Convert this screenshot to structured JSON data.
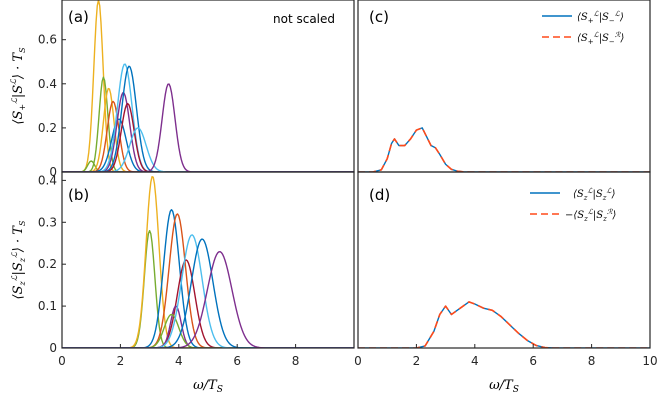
{
  "chart_data": [
    {
      "panel": "(a)",
      "type": "line",
      "annotation": "not scaled",
      "ylabel": "⟨S₊ᴸ|S₋ᴸ⟩ · T_S",
      "xlim": [
        0,
        10
      ],
      "ylim": [
        0,
        0.78
      ],
      "yticks": [
        0,
        0.2,
        0.4,
        0.6
      ],
      "yticklabels": [
        "0",
        "0.2",
        "0.4",
        "0.6"
      ],
      "series": [
        {
          "color": "#EDB120",
          "mu": 1.25,
          "sigma": 0.16,
          "amp": 0.78
        },
        {
          "color": "#77AC30",
          "mu": 1.42,
          "sigma": 0.15,
          "amp": 0.43
        },
        {
          "color": "#77AC30",
          "mu": 1.0,
          "sigma": 0.12,
          "amp": 0.05
        },
        {
          "color": "#EDB120",
          "mu": 1.6,
          "sigma": 0.18,
          "amp": 0.38
        },
        {
          "color": "#D95319",
          "mu": 1.75,
          "sigma": 0.2,
          "amp": 0.32
        },
        {
          "color": "#0072BD",
          "mu": 1.95,
          "sigma": 0.25,
          "amp": 0.24
        },
        {
          "color": "#7E2F8E",
          "mu": 2.1,
          "sigma": 0.22,
          "amp": 0.36
        },
        {
          "color": "#4DBEEE",
          "mu": 2.15,
          "sigma": 0.25,
          "amp": 0.49
        },
        {
          "color": "#0072BD",
          "mu": 2.3,
          "sigma": 0.25,
          "amp": 0.48
        },
        {
          "color": "#A2142F",
          "mu": 2.25,
          "sigma": 0.22,
          "amp": 0.31
        },
        {
          "color": "#4DBEEE",
          "mu": 2.6,
          "sigma": 0.28,
          "amp": 0.2
        },
        {
          "color": "#7E2F8E",
          "mu": 3.65,
          "sigma": 0.22,
          "amp": 0.4
        }
      ]
    },
    {
      "panel": "(b)",
      "type": "line",
      "ylabel": "⟨S_zᴸ|S_zᴸ⟩ · T_S",
      "xlabel": "ω/T_S",
      "xlim": [
        0,
        10
      ],
      "ylim": [
        0,
        0.42
      ],
      "xticks": [
        0,
        2,
        4,
        6,
        8
      ],
      "xticklabels": [
        "0",
        "2",
        "4",
        "6",
        "8"
      ],
      "yticks": [
        0,
        0.1,
        0.2,
        0.3,
        0.4
      ],
      "yticklabels": [
        "0",
        "0.1",
        "0.2",
        "0.3",
        "0.4"
      ],
      "series": [
        {
          "color": "#77AC30",
          "mu": 3.0,
          "sigma": 0.18,
          "amp": 0.28
        },
        {
          "color": "#EDB120",
          "mu": 3.1,
          "sigma": 0.22,
          "amp": 0.41
        },
        {
          "color": "#0072BD",
          "mu": 3.75,
          "sigma": 0.27,
          "amp": 0.33
        },
        {
          "color": "#D95319",
          "mu": 3.95,
          "sigma": 0.28,
          "amp": 0.32
        },
        {
          "color": "#A2142F",
          "mu": 4.25,
          "sigma": 0.3,
          "amp": 0.21
        },
        {
          "color": "#7E2F8E",
          "mu": 3.9,
          "sigma": 0.18,
          "amp": 0.1
        },
        {
          "color": "#77AC30",
          "mu": 3.75,
          "sigma": 0.25,
          "amp": 0.08
        },
        {
          "color": "#4DBEEE",
          "mu": 4.45,
          "sigma": 0.35,
          "amp": 0.27
        },
        {
          "color": "#0072BD",
          "mu": 4.8,
          "sigma": 0.37,
          "amp": 0.26
        },
        {
          "color": "#7E2F8E",
          "mu": 5.4,
          "sigma": 0.42,
          "amp": 0.23
        }
      ]
    },
    {
      "panel": "(c)",
      "type": "line",
      "xlim": [
        0,
        10
      ],
      "ylim": [
        0,
        0.78
      ],
      "legend_position": "top-right",
      "series": [
        {
          "name": "⟨S₊ᴸ|S₋ᴸ⟩",
          "color": "#0072BD",
          "style": "solid",
          "x": [
            0.5,
            0.8,
            1.0,
            1.15,
            1.25,
            1.4,
            1.6,
            1.8,
            2.0,
            2.2,
            2.35,
            2.5,
            2.65,
            2.8,
            3.0,
            3.2,
            3.4,
            3.6,
            3.8,
            4.0
          ],
          "y": [
            0.0,
            0.01,
            0.06,
            0.13,
            0.15,
            0.12,
            0.12,
            0.15,
            0.19,
            0.2,
            0.16,
            0.12,
            0.11,
            0.08,
            0.035,
            0.012,
            0.004,
            0.001,
            0.0,
            0.0
          ]
        },
        {
          "name": "⟨S₊ᴸ|S₋ᴿ⟩",
          "color": "#FF4A1A",
          "style": "dashed",
          "x": [
            0.5,
            0.8,
            1.0,
            1.15,
            1.25,
            1.4,
            1.6,
            1.8,
            2.0,
            2.2,
            2.35,
            2.5,
            2.65,
            2.8,
            3.0,
            3.2,
            3.4,
            3.6,
            3.8,
            4.0
          ],
          "y": [
            0.0,
            0.01,
            0.06,
            0.13,
            0.15,
            0.12,
            0.12,
            0.15,
            0.19,
            0.2,
            0.16,
            0.12,
            0.11,
            0.08,
            0.035,
            0.012,
            0.004,
            0.001,
            0.0,
            0.0
          ]
        }
      ]
    },
    {
      "panel": "(d)",
      "type": "line",
      "xlabel": "ω/T_S",
      "xlim": [
        0,
        10
      ],
      "ylim": [
        0,
        0.42
      ],
      "xticks": [
        0,
        2,
        4,
        6,
        8,
        10
      ],
      "xticklabels": [
        "0",
        "2",
        "4",
        "6",
        "8",
        "10"
      ],
      "legend_position": "top-right",
      "series": [
        {
          "name": "⟨S_zᴸ|S_zᴸ⟩",
          "color": "#0072BD",
          "style": "solid",
          "x": [
            2.0,
            2.3,
            2.6,
            2.8,
            3.0,
            3.2,
            3.5,
            3.8,
            4.0,
            4.3,
            4.6,
            4.9,
            5.2,
            5.5,
            5.8,
            6.1,
            6.4,
            6.7
          ],
          "y": [
            0.0,
            0.005,
            0.04,
            0.08,
            0.1,
            0.08,
            0.095,
            0.11,
            0.105,
            0.095,
            0.09,
            0.075,
            0.055,
            0.035,
            0.018,
            0.006,
            0.001,
            0.0
          ]
        },
        {
          "name": "−⟨S_zᴸ|S_zᴿ⟩",
          "color": "#FF4A1A",
          "style": "dashed",
          "x": [
            2.0,
            2.3,
            2.6,
            2.8,
            3.0,
            3.2,
            3.5,
            3.8,
            4.0,
            4.3,
            4.6,
            4.9,
            5.2,
            5.5,
            5.8,
            6.1,
            6.4,
            6.7
          ],
          "y": [
            0.0,
            0.005,
            0.04,
            0.08,
            0.1,
            0.08,
            0.095,
            0.11,
            0.105,
            0.095,
            0.09,
            0.075,
            0.055,
            0.035,
            0.018,
            0.006,
            0.001,
            0.0
          ]
        }
      ]
    }
  ]
}
